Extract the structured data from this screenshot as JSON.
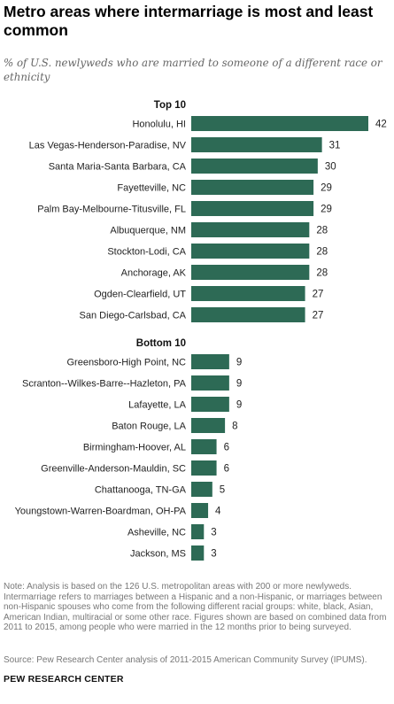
{
  "title": "Metro areas where intermarriage is most and least common",
  "subtitle": "% of U.S. newlyweds who are married to someone of a different race or ethnicity",
  "colors": {
    "bar": "#2d6a55",
    "label": "#222222",
    "value": "#222222"
  },
  "chart_data": [
    {
      "type": "bar",
      "orientation": "horizontal",
      "title": "Top 10",
      "categories": [
        "Honolulu, HI",
        "Las Vegas-Henderson-Paradise, NV",
        "Santa Maria-Santa Barbara, CA",
        "Fayetteville, NC",
        "Palm Bay-Melbourne-Titusville, FL",
        "Albuquerque, NM",
        "Stockton-Lodi, CA",
        "Anchorage, AK",
        "Ogden-Clearfield, UT",
        "San Diego-Carlsbad, CA"
      ],
      "values": [
        42,
        31,
        30,
        29,
        29,
        28,
        28,
        28,
        27,
        27
      ]
    },
    {
      "type": "bar",
      "orientation": "horizontal",
      "title": "Bottom 10",
      "categories": [
        "Greensboro-High Point, NC",
        "Scranton--Wilkes-Barre--Hazleton, PA",
        "Lafayette, LA",
        "Baton Rouge, LA",
        "Birmingham-Hoover, AL",
        "Greenville-Anderson-Mauldin, SC",
        "Chattanooga, TN-GA",
        "Youngstown-Warren-Boardman, OH-PA",
        "Asheville, NC",
        "Jackson, MS"
      ],
      "values": [
        9,
        9,
        9,
        8,
        6,
        6,
        5,
        4,
        3,
        3
      ]
    }
  ],
  "note": "Note: Analysis is based on the 126 U.S. metropolitan areas with 200 or more newlyweds. Intermarriage refers to marriages between a Hispanic and a non-Hispanic, or marriages between non-Hispanic spouses who come from the following different racial groups: white, black, Asian, American Indian, multiracial or some other race. Figures shown are based on combined data from 2011 to 2015, among people who were married in the 12 months prior to being surveyed.",
  "source": "Source: Pew Research Center analysis of 2011-2015 American Community Survey (IPUMS).",
  "brand": "PEW RESEARCH CENTER"
}
